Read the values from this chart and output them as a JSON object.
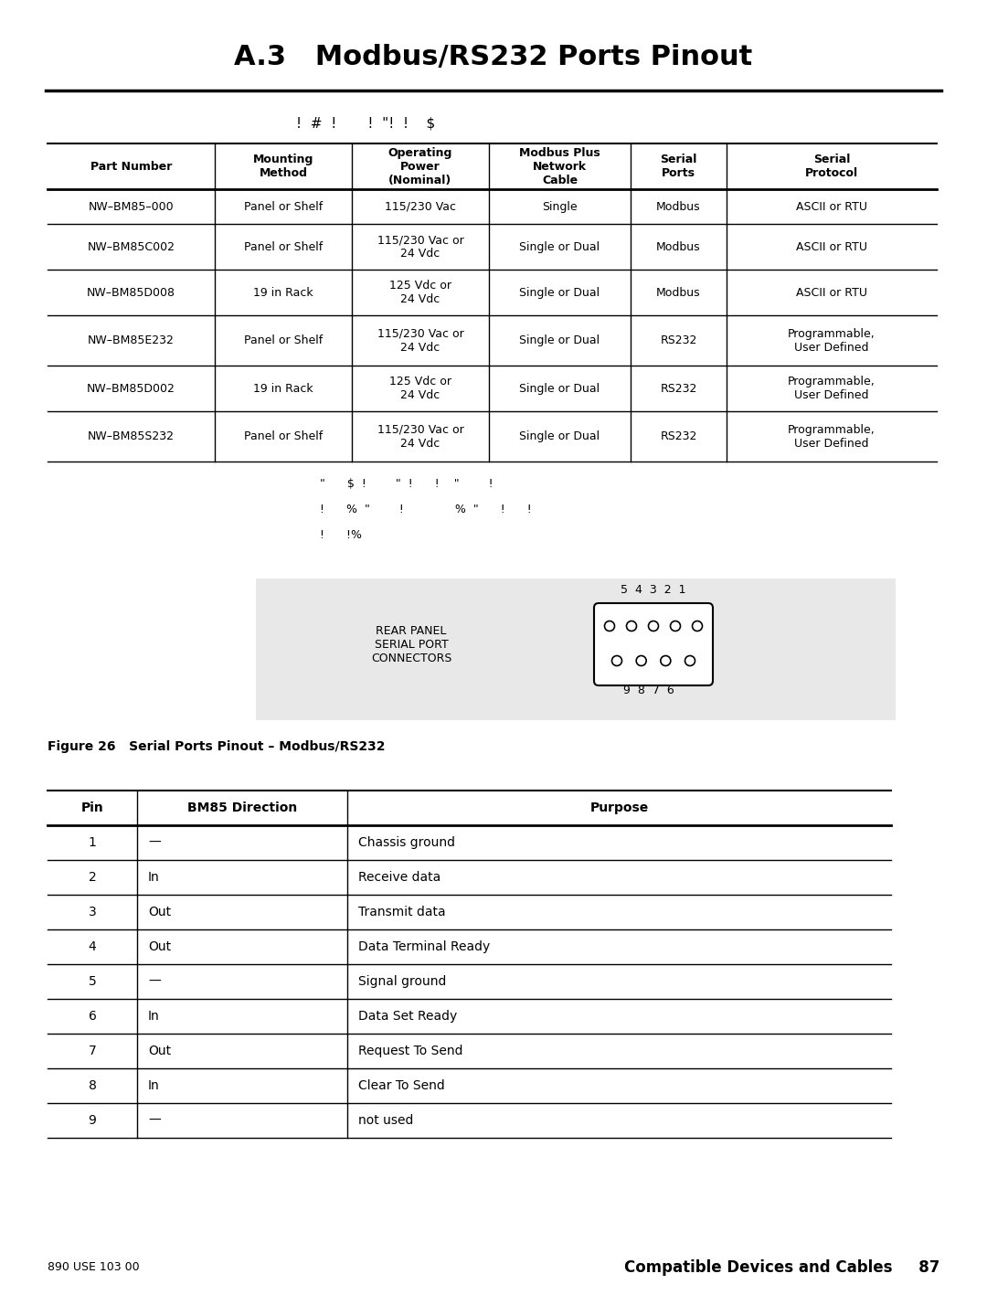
{
  "title": "A.3   Modbus/RS232 Ports Pinout",
  "subtitle_line": "!  #  !       !  \"!  !    $",
  "table1_headers": [
    "Part Number",
    "Mounting\nMethod",
    "Operating\nPower\n(Nominal)",
    "Modbus Plus\nNetwork\nCable",
    "Serial\nPorts",
    "Serial\nProtocol"
  ],
  "table1_rows": [
    [
      "NW–BM85–000",
      "Panel or Shelf",
      "115/230 Vac",
      "Single",
      "Modbus",
      "ASCII or RTU"
    ],
    [
      "NW–BM85C002",
      "Panel or Shelf",
      "115/230 Vac or\n24 Vdc",
      "Single or Dual",
      "Modbus",
      "ASCII or RTU"
    ],
    [
      "NW–BM85D008",
      "19 in Rack",
      "125 Vdc or\n24 Vdc",
      "Single or Dual",
      "Modbus",
      "ASCII or RTU"
    ],
    [
      "NW–BM85E232",
      "Panel or Shelf",
      "115/230 Vac or\n24 Vdc",
      "Single or Dual",
      "RS232",
      "Programmable,\nUser Defined"
    ],
    [
      "NW–BM85D002",
      "19 in Rack",
      "125 Vdc or\n24 Vdc",
      "Single or Dual",
      "RS232",
      "Programmable,\nUser Defined"
    ],
    [
      "NW–BM85S232",
      "Panel or Shelf",
      "115/230 Vac or\n24 Vdc",
      "Single or Dual",
      "RS232",
      "Programmable,\nUser Defined"
    ]
  ],
  "note_lines": [
    "\"      $  !        \"  !      !    \"        !",
    "!      %  \"        !              %  \"      !      !",
    "!      !%"
  ],
  "figure_caption": "Figure 26   Serial Ports Pinout – Modbus/RS232",
  "connector_label": "REAR PANEL\nSERIAL PORT\nCONNECTORS",
  "connector_top_pins": "5  4  3  2  1",
  "connector_bottom_pins": "9  8  7  6",
  "table2_headers": [
    "Pin",
    "BM85 Direction",
    "Purpose"
  ],
  "table2_rows": [
    [
      "1",
      "—",
      "Chassis ground"
    ],
    [
      "2",
      "In",
      "Receive data"
    ],
    [
      "3",
      "Out",
      "Transmit data"
    ],
    [
      "4",
      "Out",
      "Data Terminal Ready"
    ],
    [
      "5",
      "—",
      "Signal ground"
    ],
    [
      "6",
      "In",
      "Data Set Ready"
    ],
    [
      "7",
      "Out",
      "Request To Send"
    ],
    [
      "8",
      "In",
      "Clear To Send"
    ],
    [
      "9",
      "—",
      "not used"
    ]
  ],
  "footer_left": "890 USE 103 00",
  "footer_right": "Compatible Devices and Cables     87",
  "bg_color": "#ffffff",
  "line_color": "#000000",
  "connector_bg": "#e8e8e8"
}
